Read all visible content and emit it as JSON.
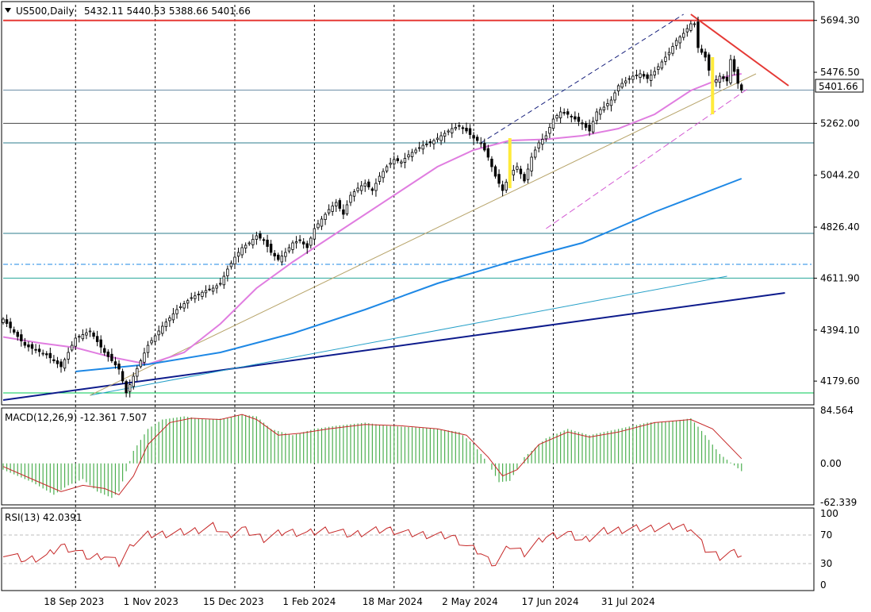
{
  "header": {
    "symbol": "US500,Daily",
    "ohlc": "5432.11 5440.53 5388.66 5401.66"
  },
  "price_tag": "5401.66",
  "colors": {
    "up_candle": "#ffffff",
    "down_candle": "#000000",
    "ma50": "#e07de0",
    "ma200": "#1e88e5",
    "macd_hist": "#4caf50",
    "macd_signal": "#c62828",
    "rsi": "#c62828",
    "support": "#2e7d8c",
    "trend_dark": "#0d1b8c",
    "resistance_red": "#e53935",
    "highlight": "#ffeb3b"
  },
  "chart_data": [
    {
      "type": "candlestick",
      "name": "US500 Daily",
      "ylim": [
        4080,
        5760
      ],
      "y_ticks": [
        "5694.30",
        "5476.50",
        "5262.00",
        "5044.20",
        "4826.40",
        "4611.90",
        "4394.10",
        "4179.60"
      ],
      "x_ticks": [
        "18 Sep 2023",
        "1 Nov 2023",
        "15 Dec 2023",
        "1 Feb 2024",
        "18 Mar 2024",
        "2 May 2024",
        "17 Jun 2024",
        "31 Jul 2024"
      ],
      "last_close": 5401.66,
      "close_path": [
        [
          0,
          4440
        ],
        [
          6,
          4330
        ],
        [
          12,
          4290
        ],
        [
          16,
          4240
        ],
        [
          20,
          4360
        ],
        [
          24,
          4390
        ],
        [
          28,
          4300
        ],
        [
          32,
          4230
        ],
        [
          34,
          4130
        ],
        [
          36,
          4200
        ],
        [
          40,
          4330
        ],
        [
          44,
          4410
        ],
        [
          48,
          4480
        ],
        [
          52,
          4530
        ],
        [
          56,
          4560
        ],
        [
          58,
          4570
        ],
        [
          60,
          4590
        ],
        [
          62,
          4650
        ],
        [
          64,
          4700
        ],
        [
          66,
          4740
        ],
        [
          68,
          4760
        ],
        [
          70,
          4790
        ],
        [
          72,
          4770
        ],
        [
          74,
          4720
        ],
        [
          76,
          4690
        ],
        [
          78,
          4720
        ],
        [
          80,
          4760
        ],
        [
          82,
          4770
        ],
        [
          84,
          4740
        ],
        [
          86,
          4820
        ],
        [
          88,
          4860
        ],
        [
          90,
          4900
        ],
        [
          92,
          4930
        ],
        [
          94,
          4880
        ],
        [
          96,
          4960
        ],
        [
          98,
          4990
        ],
        [
          100,
          5010
        ],
        [
          102,
          4980
        ],
        [
          104,
          5040
        ],
        [
          106,
          5080
        ],
        [
          108,
          5110
        ],
        [
          110,
          5100
        ],
        [
          112,
          5130
        ],
        [
          114,
          5150
        ],
        [
          116,
          5170
        ],
        [
          118,
          5180
        ],
        [
          120,
          5200
        ],
        [
          122,
          5220
        ],
        [
          124,
          5240
        ],
        [
          126,
          5250
        ],
        [
          128,
          5230
        ],
        [
          130,
          5200
        ],
        [
          132,
          5180
        ],
        [
          134,
          5120
        ],
        [
          136,
          5040
        ],
        [
          138,
          4980
        ],
        [
          140,
          5050
        ],
        [
          142,
          5080
        ],
        [
          144,
          5020
        ],
        [
          146,
          5120
        ],
        [
          148,
          5180
        ],
        [
          150,
          5210
        ],
        [
          152,
          5280
        ],
        [
          154,
          5310
        ],
        [
          156,
          5300
        ],
        [
          158,
          5280
        ],
        [
          160,
          5260
        ],
        [
          162,
          5230
        ],
        [
          164,
          5310
        ],
        [
          166,
          5330
        ],
        [
          168,
          5360
        ],
        [
          170,
          5420
        ],
        [
          172,
          5440
        ],
        [
          174,
          5460
        ],
        [
          176,
          5470
        ],
        [
          178,
          5450
        ],
        [
          180,
          5480
        ],
        [
          182,
          5520
        ],
        [
          184,
          5560
        ],
        [
          186,
          5610
        ],
        [
          188,
          5640
        ],
        [
          190,
          5680
        ],
        [
          191,
          5680
        ],
        [
          192,
          5580
        ],
        [
          194,
          5540
        ],
        [
          196,
          5430
        ],
        [
          198,
          5460
        ],
        [
          200,
          5440
        ],
        [
          201,
          5530
        ],
        [
          203,
          5430
        ],
        [
          204,
          5401.66
        ]
      ],
      "series": [
        {
          "name": "",
          "kind": "moving-average-fast",
          "values": [
            [
              0,
              4365
            ],
            [
              10,
              4340
            ],
            [
              20,
              4320
            ],
            [
              30,
              4280
            ],
            [
              40,
              4250
            ],
            [
              50,
              4300
            ],
            [
              60,
              4420
            ],
            [
              70,
              4570
            ],
            [
              80,
              4680
            ],
            [
              90,
              4780
            ],
            [
              100,
              4880
            ],
            [
              110,
              4980
            ],
            [
              120,
              5080
            ],
            [
              130,
              5150
            ],
            [
              140,
              5190
            ],
            [
              150,
              5195
            ],
            [
              160,
              5210
            ],
            [
              170,
              5240
            ],
            [
              180,
              5300
            ],
            [
              190,
              5400
            ],
            [
              200,
              5460
            ],
            [
              204,
              5470
            ]
          ]
        },
        {
          "name": "",
          "kind": "moving-average-slow",
          "values": [
            [
              20,
              4220
            ],
            [
              40,
              4250
            ],
            [
              60,
              4300
            ],
            [
              80,
              4380
            ],
            [
              100,
              4480
            ],
            [
              120,
              4590
            ],
            [
              140,
              4680
            ],
            [
              160,
              4760
            ],
            [
              180,
              4890
            ],
            [
              204,
              5030
            ]
          ]
        }
      ],
      "lines": [
        {
          "kind": "horizontal",
          "y": 5694.3
        },
        {
          "kind": "horizontal",
          "y": 5401.66
        },
        {
          "kind": "horizontal",
          "y": 5262
        },
        {
          "kind": "horizontal",
          "y": 5180
        },
        {
          "kind": "horizontal",
          "y": 4800
        },
        {
          "kind": "horizontal",
          "y": 4670
        },
        {
          "kind": "horizontal",
          "y": 4611.9
        },
        {
          "kind": "horizontal",
          "y": 4130
        },
        {
          "kind": "trend",
          "from": [
            0,
            4100
          ],
          "to": [
            216,
            4550
          ]
        },
        {
          "kind": "trend",
          "from": [
            24,
            4120
          ],
          "to": [
            200,
            4620
          ]
        },
        {
          "kind": "trend",
          "from": [
            24,
            4120
          ],
          "to": [
            208,
            5470
          ]
        },
        {
          "kind": "trend",
          "from": [
            190,
            5720
          ],
          "to": [
            217,
            5420
          ]
        }
      ],
      "grid": true
    },
    {
      "type": "bar",
      "name": "MACD",
      "label": "MACD(12,26,9) -12.361 7.507",
      "ylim": [
        -62.339,
        84.564
      ],
      "y_ticks": [
        "84.564",
        "0.00",
        "-62.339"
      ],
      "histogram": [
        [
          0,
          -10
        ],
        [
          8,
          -30
        ],
        [
          14,
          -50
        ],
        [
          18,
          -35
        ],
        [
          22,
          -25
        ],
        [
          26,
          -45
        ],
        [
          30,
          -55
        ],
        [
          32,
          -45
        ],
        [
          36,
          20
        ],
        [
          40,
          55
        ],
        [
          44,
          70
        ],
        [
          50,
          75
        ],
        [
          56,
          70
        ],
        [
          62,
          72
        ],
        [
          66,
          78
        ],
        [
          70,
          75
        ],
        [
          74,
          55
        ],
        [
          80,
          45
        ],
        [
          86,
          55
        ],
        [
          92,
          60
        ],
        [
          100,
          65
        ],
        [
          106,
          60
        ],
        [
          112,
          58
        ],
        [
          120,
          55
        ],
        [
          126,
          50
        ],
        [
          130,
          30
        ],
        [
          134,
          0
        ],
        [
          137,
          -30
        ],
        [
          140,
          -28
        ],
        [
          144,
          10
        ],
        [
          150,
          40
        ],
        [
          156,
          55
        ],
        [
          162,
          45
        ],
        [
          170,
          55
        ],
        [
          178,
          65
        ],
        [
          186,
          68
        ],
        [
          190,
          72
        ],
        [
          194,
          45
        ],
        [
          198,
          15
        ],
        [
          204,
          -12.361
        ]
      ],
      "signal": [
        [
          0,
          -5
        ],
        [
          10,
          -30
        ],
        [
          16,
          -45
        ],
        [
          22,
          -35
        ],
        [
          28,
          -40
        ],
        [
          32,
          -50
        ],
        [
          36,
          -20
        ],
        [
          40,
          30
        ],
        [
          46,
          65
        ],
        [
          52,
          72
        ],
        [
          60,
          70
        ],
        [
          66,
          78
        ],
        [
          70,
          70
        ],
        [
          76,
          45
        ],
        [
          82,
          48
        ],
        [
          90,
          55
        ],
        [
          100,
          62
        ],
        [
          110,
          60
        ],
        [
          120,
          55
        ],
        [
          128,
          45
        ],
        [
          134,
          10
        ],
        [
          138,
          -20
        ],
        [
          142,
          -10
        ],
        [
          148,
          30
        ],
        [
          156,
          50
        ],
        [
          162,
          42
        ],
        [
          170,
          50
        ],
        [
          180,
          65
        ],
        [
          190,
          70
        ],
        [
          196,
          55
        ],
        [
          204,
          7.507
        ]
      ]
    },
    {
      "type": "line",
      "name": "RSI",
      "label": "RSI(13) 42.0391",
      "ylim": [
        0,
        100
      ],
      "y_ticks": [
        "100",
        "70",
        "30",
        "0"
      ],
      "levels": [
        70,
        30
      ],
      "values": [
        [
          0,
          45
        ],
        [
          6,
          35
        ],
        [
          12,
          40
        ],
        [
          16,
          55
        ],
        [
          20,
          48
        ],
        [
          24,
          38
        ],
        [
          28,
          42
        ],
        [
          32,
          30
        ],
        [
          36,
          60
        ],
        [
          40,
          70
        ],
        [
          46,
          72
        ],
        [
          52,
          75
        ],
        [
          58,
          82
        ],
        [
          62,
          70
        ],
        [
          66,
          78
        ],
        [
          72,
          65
        ],
        [
          78,
          75
        ],
        [
          84,
          72
        ],
        [
          90,
          78
        ],
        [
          96,
          70
        ],
        [
          100,
          74
        ],
        [
          106,
          78
        ],
        [
          112,
          72
        ],
        [
          118,
          70
        ],
        [
          124,
          68
        ],
        [
          128,
          55
        ],
        [
          132,
          45
        ],
        [
          134,
          35
        ],
        [
          136,
          30
        ],
        [
          140,
          55
        ],
        [
          144,
          45
        ],
        [
          150,
          68
        ],
        [
          156,
          72
        ],
        [
          160,
          62
        ],
        [
          166,
          75
        ],
        [
          172,
          78
        ],
        [
          180,
          80
        ],
        [
          186,
          82
        ],
        [
          190,
          80
        ],
        [
          194,
          50
        ],
        [
          198,
          40
        ],
        [
          201,
          45
        ],
        [
          204,
          42.0391
        ]
      ]
    }
  ]
}
